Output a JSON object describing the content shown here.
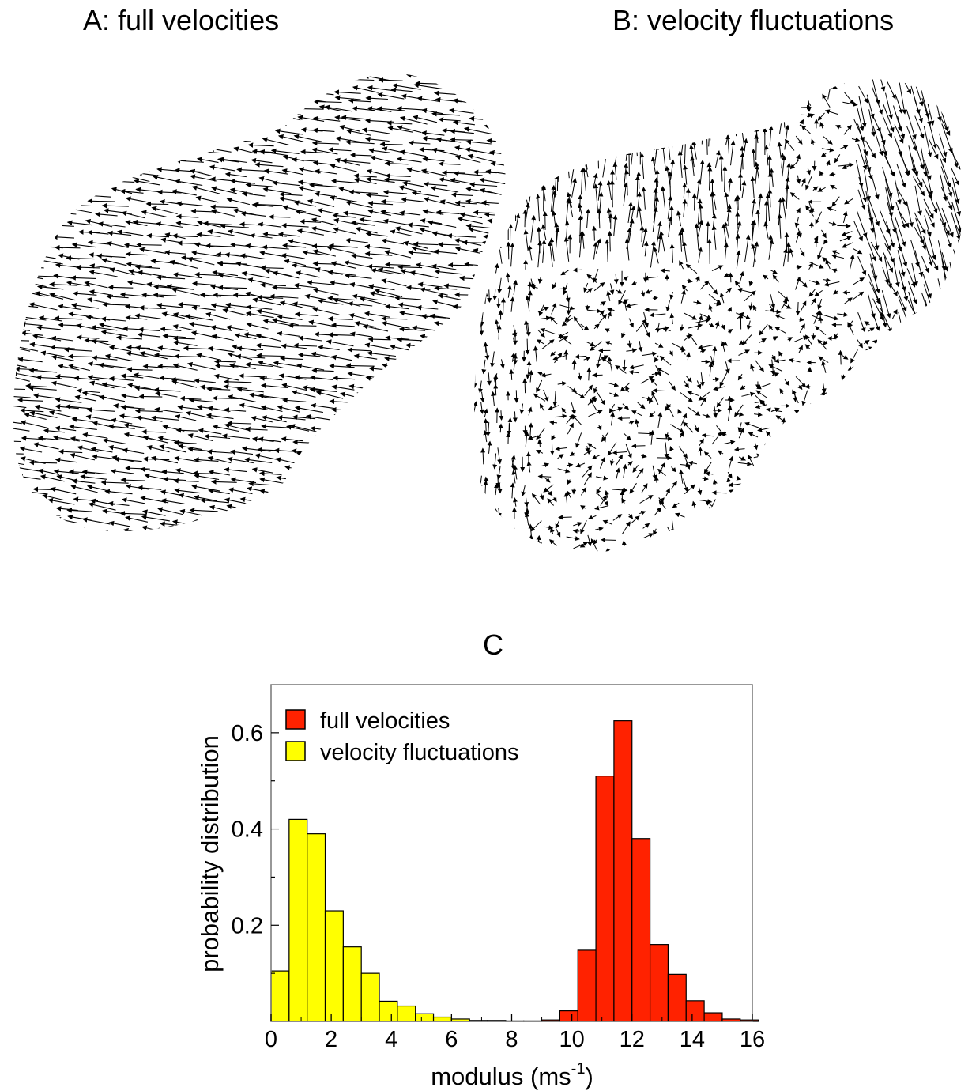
{
  "panels": {
    "a_title": "A: full velocities",
    "b_title": "B: velocity fluctuations",
    "c_title": "C"
  },
  "chart_data": [
    {
      "type": "vector-field",
      "title": "A: full velocities",
      "mean_direction": "pointing left, slightly upward",
      "region": "kidney-shaped flock; wide on the left, narrower on the upper right",
      "arrow_color": "#000000"
    },
    {
      "type": "vector-field",
      "title": "B: velocity fluctuations",
      "direction": "mostly upward along the upper edges, pointing down on the upper right, short and randomly oriented in the interior",
      "region": "same kidney-shaped flock",
      "arrow_color": "#000000"
    },
    {
      "type": "bar",
      "title": "C",
      "xlabel": "modulus (ms⁻¹)",
      "xlabel_base": "modulus (ms",
      "xlabel_sup": "-1",
      "xlabel_close": ")",
      "ylabel": "probability distribution",
      "xlim": [
        0,
        16
      ],
      "ylim": [
        0,
        0.7
      ],
      "xticks": [
        "0",
        "2",
        "4",
        "6",
        "8",
        "10",
        "12",
        "14",
        "16"
      ],
      "yticks": [
        "0.2",
        "0.4",
        "0.6"
      ],
      "grid": false,
      "legend_position": "top-left",
      "bin_width": 0.6,
      "series": [
        {
          "name": "full velocities",
          "color": "#ff2200",
          "bin_starts": [
            9.0,
            9.6,
            10.2,
            10.8,
            11.4,
            12.0,
            12.6,
            13.2,
            13.8,
            14.4
          ],
          "values": [
            0.003,
            0.022,
            0.148,
            0.51,
            0.625,
            0.38,
            0.16,
            0.098,
            0.043,
            0.018
          ],
          "tail": [
            {
              "bin_start": 15.0,
              "value": 0.005
            },
            {
              "bin_start": 15.6,
              "value": 0.003
            }
          ]
        },
        {
          "name": "velocity fluctuations",
          "color": "#ffff00",
          "bin_starts": [
            0.0,
            0.6,
            1.2,
            1.8,
            2.4,
            3.0,
            3.6,
            4.2,
            4.8,
            5.4,
            6.0,
            6.6,
            7.2,
            7.8,
            8.4
          ],
          "values": [
            0.105,
            0.42,
            0.39,
            0.23,
            0.155,
            0.1,
            0.042,
            0.032,
            0.016,
            0.009,
            0.005,
            0.002,
            0.002,
            0.001,
            0.001
          ]
        }
      ]
    }
  ]
}
